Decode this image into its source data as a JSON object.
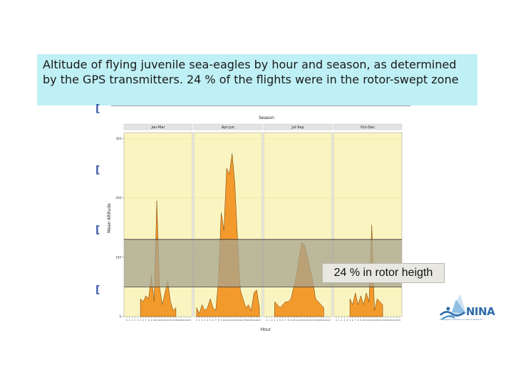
{
  "slide": {
    "caption": "Altitude of flying juvenile sea-eagles by hour and season, as determined by the GPS transmitters. 24 % of the flights were in the rotor-swept zone",
    "callout": "24 % in rotor heigth",
    "bullet_glyph": "["
  },
  "logo": {
    "icon": "nina-logo-icon",
    "text": "NINA",
    "subtitle": "Norwegian Institute for Nature Research"
  },
  "colors": {
    "panel_bg": "#faf5c0",
    "strip_bg": "#e3e3e3",
    "area_fill": "#f39a2c",
    "rotor_band": "#9a9a8c",
    "caption_bg": "#bff0f5"
  },
  "chart_data": {
    "type": "area",
    "title": "Season",
    "xlabel": "Hour",
    "ylabel": "Mean Altitude",
    "ylim": [
      0,
      310
    ],
    "yticks": [
      0,
      100,
      200,
      300
    ],
    "xlim": [
      -0.5,
      23.5
    ],
    "x": [
      0,
      1,
      2,
      3,
      4,
      5,
      6,
      7,
      8,
      9,
      10,
      11,
      12,
      13,
      14,
      15,
      16,
      17,
      18,
      19,
      20,
      21,
      22,
      23
    ],
    "xtick_labels": [
      "0",
      "1",
      "2",
      "3",
      "4",
      "5",
      "6",
      "7",
      "8",
      "9",
      "10",
      "11",
      "12",
      "13",
      "14",
      "15",
      "16",
      "17",
      "18",
      "19",
      "20",
      "21",
      "22",
      "23"
    ],
    "rotor_zone": [
      50,
      130
    ],
    "grid": true,
    "panels": [
      {
        "name": "Jan-Mar",
        "values": [
          null,
          null,
          null,
          null,
          null,
          30,
          25,
          35,
          30,
          70,
          25,
          195,
          50,
          20,
          40,
          60,
          25,
          10,
          15,
          null,
          null,
          null,
          null,
          null
        ]
      },
      {
        "name": "Apr-Jun",
        "values": [
          15,
          5,
          20,
          10,
          15,
          30,
          15,
          10,
          60,
          175,
          145,
          250,
          240,
          275,
          225,
          130,
          45,
          30,
          15,
          20,
          10,
          40,
          45,
          15
        ]
      },
      {
        "name": "Jul-Sep",
        "values": [
          null,
          null,
          null,
          25,
          20,
          15,
          20,
          25,
          25,
          30,
          50,
          70,
          100,
          125,
          120,
          100,
          80,
          60,
          30,
          25,
          20,
          15,
          null,
          null
        ]
      },
      {
        "name": "Oct-Dec",
        "values": [
          null,
          null,
          null,
          null,
          null,
          30,
          20,
          40,
          20,
          35,
          20,
          40,
          25,
          155,
          10,
          30,
          25,
          20,
          null,
          null,
          null,
          null,
          null,
          null
        ]
      }
    ]
  }
}
